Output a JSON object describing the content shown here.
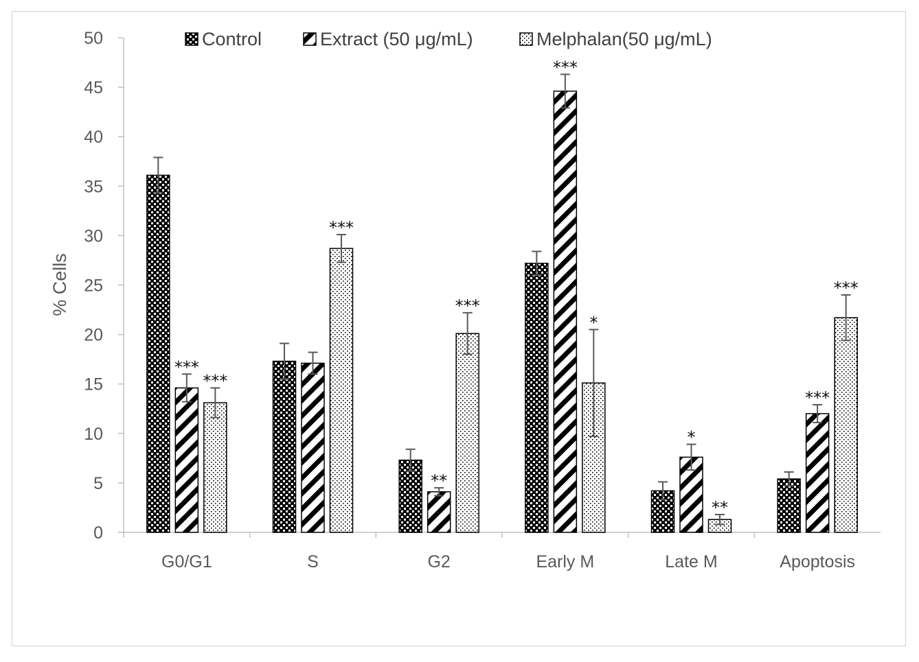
{
  "chart_data": {
    "type": "bar",
    "title": "",
    "xlabel": "",
    "ylabel": "% Cells",
    "ylim": [
      0,
      50
    ],
    "yticks": [
      0,
      5,
      10,
      15,
      20,
      25,
      30,
      35,
      40,
      45,
      50
    ],
    "categories": [
      "G0/G1",
      "S",
      "G2",
      "Early M",
      "Late M",
      "Apoptosis"
    ],
    "legend_position": "top",
    "series": [
      {
        "name": "Control",
        "pattern": "checker",
        "values": [
          36.1,
          17.3,
          7.3,
          27.2,
          4.2,
          5.4
        ],
        "errors": [
          1.8,
          1.8,
          1.1,
          1.2,
          0.9,
          0.7
        ],
        "significance": [
          "",
          "",
          "",
          "",
          "",
          ""
        ]
      },
      {
        "name": "Extract (50 μg/mL)",
        "pattern": "diagonal",
        "values": [
          14.6,
          17.1,
          4.1,
          44.6,
          7.6,
          12.0
        ],
        "errors": [
          1.4,
          1.1,
          0.4,
          1.7,
          1.3,
          0.9
        ],
        "significance": [
          "***",
          "",
          "**",
          "***",
          "*",
          "***"
        ]
      },
      {
        "name": "Melphalan(50 μg/mL)",
        "pattern": "dots",
        "values": [
          13.1,
          28.7,
          20.1,
          15.1,
          1.3,
          21.7
        ],
        "errors": [
          1.5,
          1.4,
          2.1,
          5.4,
          0.5,
          2.3
        ],
        "significance": [
          "***",
          "***",
          "***",
          "*",
          "**",
          "***"
        ]
      }
    ]
  },
  "colors": {
    "axis": "#bfbfbf",
    "bar_stroke": "#000000",
    "error_bar": "#595959",
    "text": "#595959"
  }
}
